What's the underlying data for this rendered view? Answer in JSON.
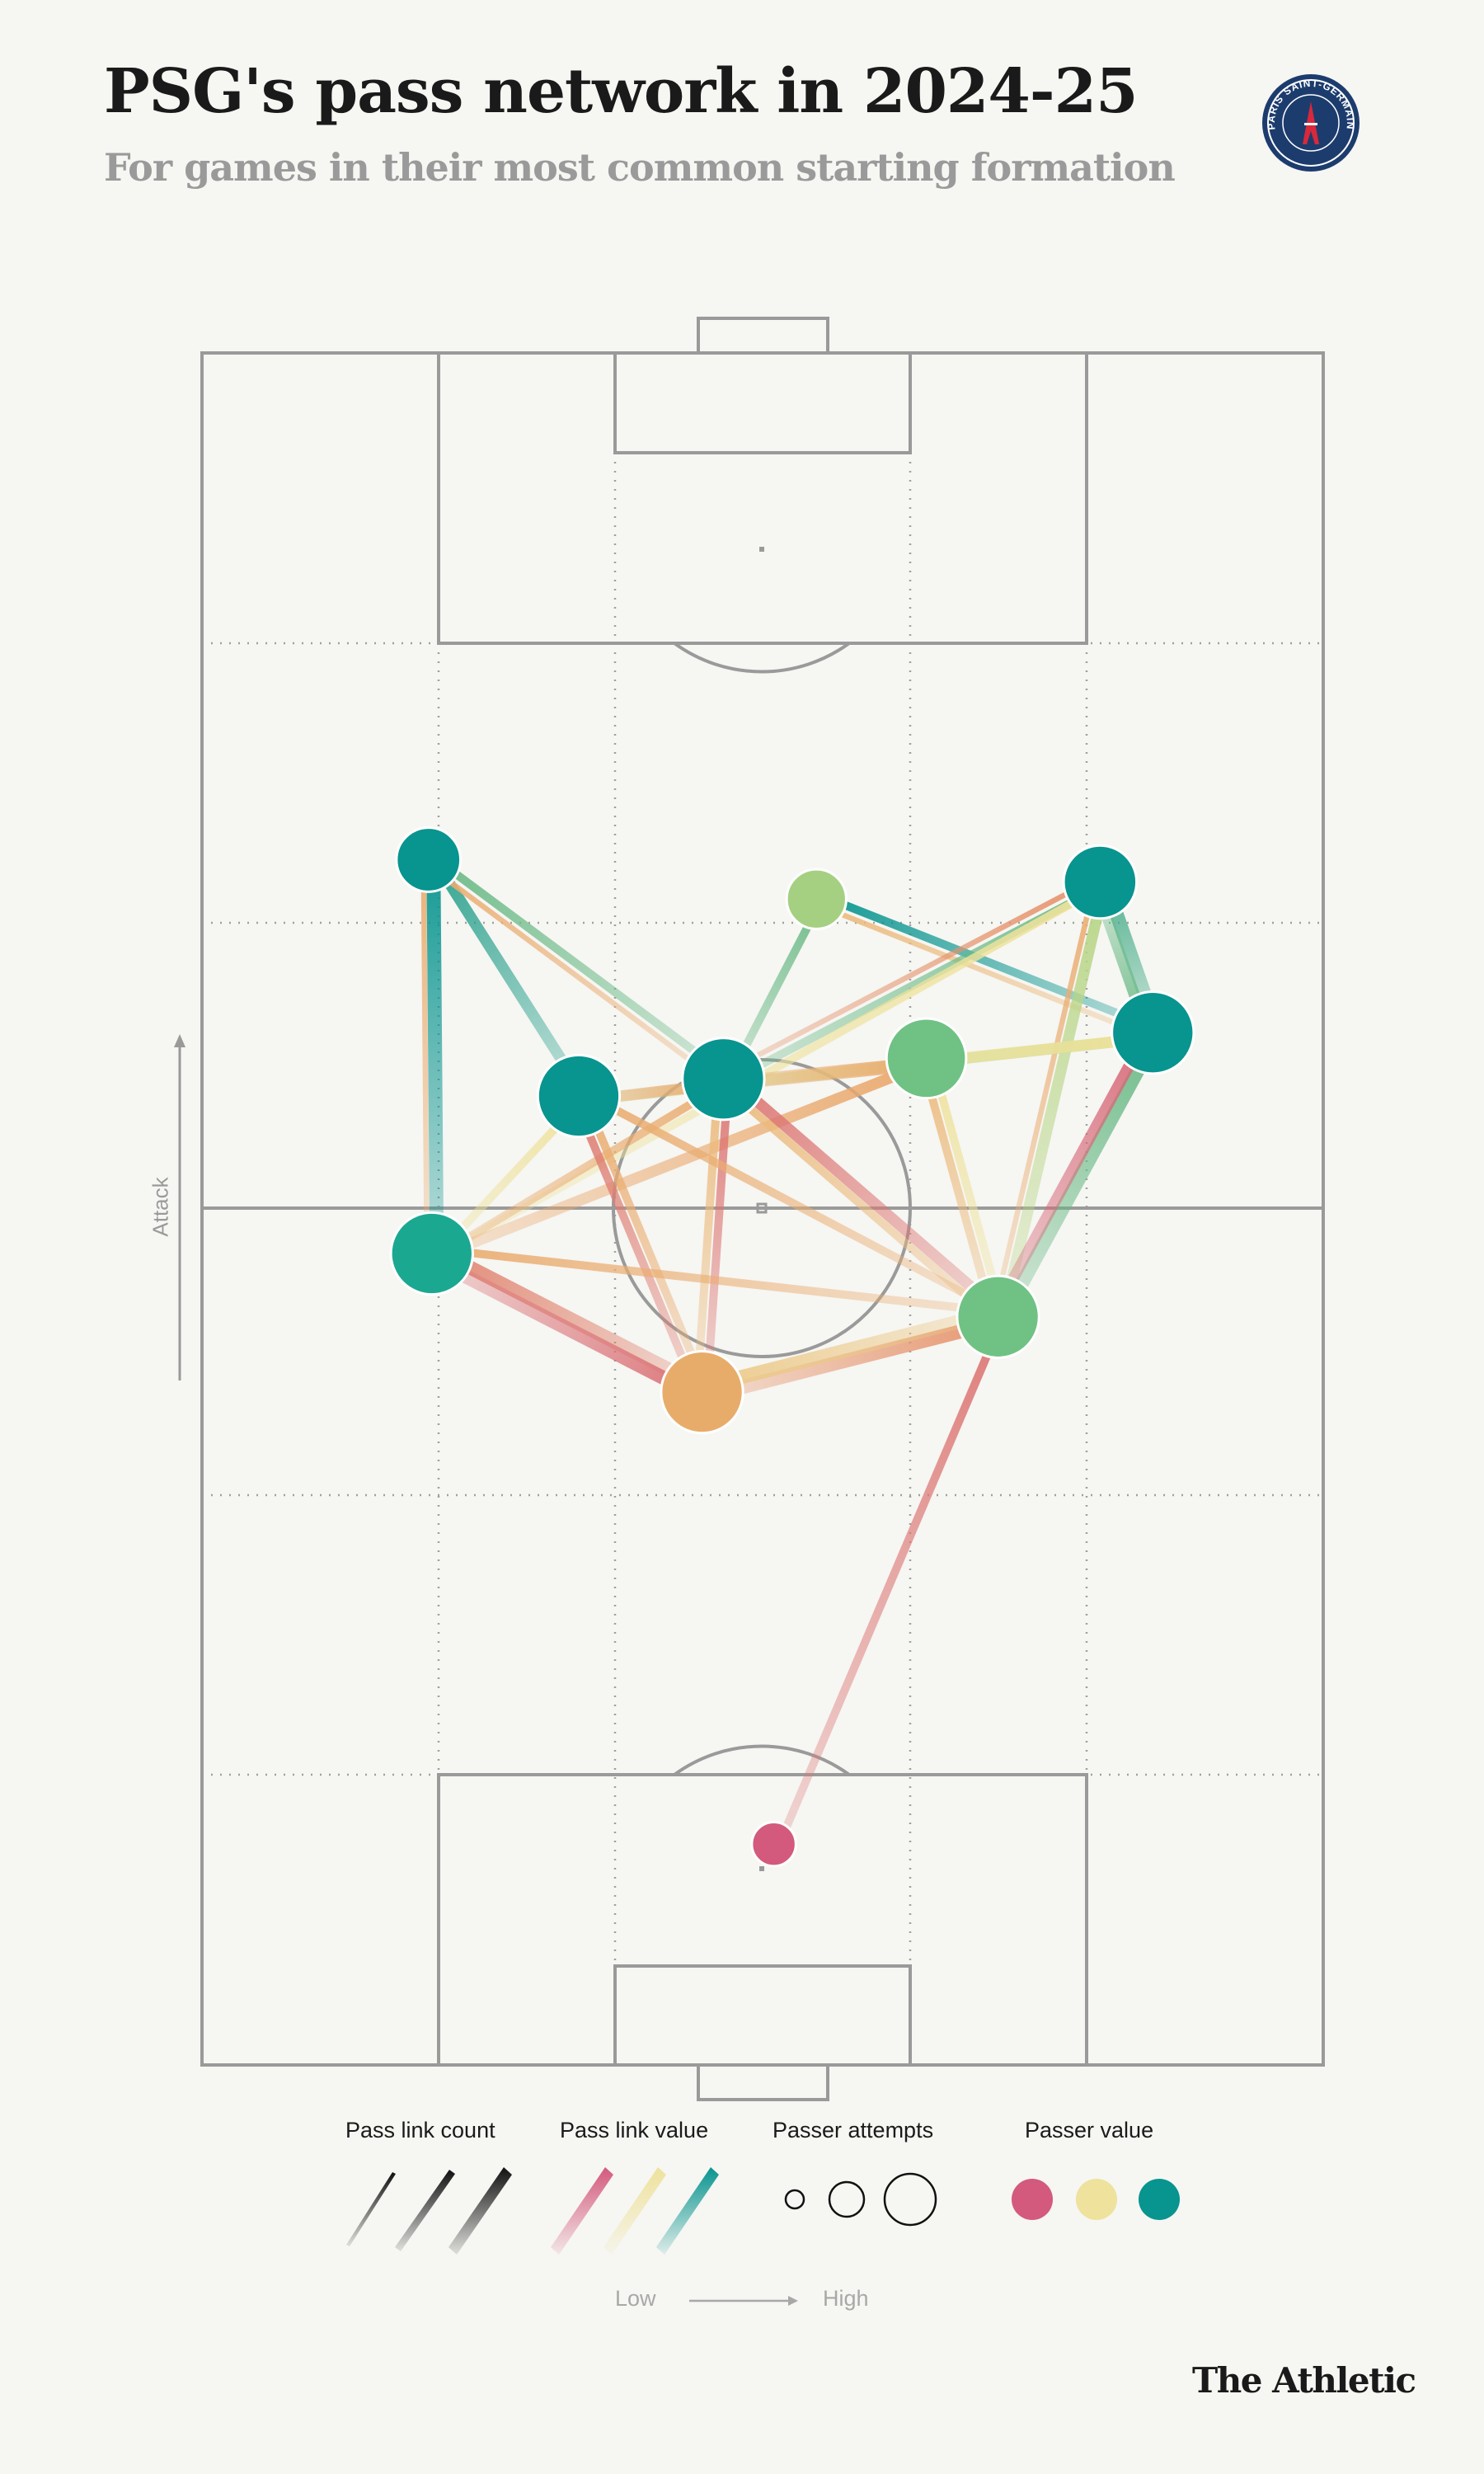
{
  "header": {
    "title": "PSG's pass network in 2024-25",
    "subtitle": "For games in their most common starting formation",
    "crest_text": "PARIS SAINT-GERMAIN"
  },
  "attack_label": "Attack",
  "legend": {
    "count_title": "Pass link count",
    "value_title": "Pass link value",
    "attempts_title": "Passer attempts",
    "passer_value_title": "Passer value",
    "low": "Low",
    "high": "High",
    "value_colors": [
      "#d35a7c",
      "#eee29c",
      "#08948f"
    ]
  },
  "brand": "The Athletic",
  "colors": {
    "background": "#f6f6f3",
    "pitch_lines": "#9a9a9a",
    "colormap": [
      "#d35a7c",
      "#e9a066",
      "#eee29c",
      "#a9d27f",
      "#08948f"
    ]
  },
  "chart_data": {
    "type": "network",
    "pitch": {
      "x_range": [
        0,
        100
      ],
      "y_range": [
        0,
        100
      ],
      "attack_direction": "up"
    },
    "nodes": [
      {
        "id": 1,
        "x": 20.2,
        "y": 70.4,
        "attempts": 0.55,
        "color": "#08948f"
      },
      {
        "id": 2,
        "x": 54.8,
        "y": 68.1,
        "attempts": 0.45,
        "color": "#a6d081"
      },
      {
        "id": 3,
        "x": 80.1,
        "y": 69.1,
        "attempts": 0.75,
        "color": "#08948f"
      },
      {
        "id": 4,
        "x": 84.8,
        "y": 60.3,
        "attempts": 0.95,
        "color": "#08948f"
      },
      {
        "id": 5,
        "x": 64.6,
        "y": 58.8,
        "attempts": 0.9,
        "color": "#6fc283"
      },
      {
        "id": 6,
        "x": 46.5,
        "y": 57.6,
        "attempts": 0.95,
        "color": "#08948f"
      },
      {
        "id": 7,
        "x": 33.6,
        "y": 56.6,
        "attempts": 0.95,
        "color": "#08948f"
      },
      {
        "id": 8,
        "x": 20.5,
        "y": 47.4,
        "attempts": 0.95,
        "color": "#1ba891"
      },
      {
        "id": 9,
        "x": 71.0,
        "y": 43.7,
        "attempts": 0.95,
        "color": "#6fc283"
      },
      {
        "id": 10,
        "x": 44.6,
        "y": 39.3,
        "attempts": 0.95,
        "color": "#e8ac6a"
      },
      {
        "id": 11,
        "x": 51.0,
        "y": 12.9,
        "attempts": 0.1,
        "color": "#d35a7c"
      }
    ],
    "edges": [
      {
        "from": 1,
        "to": 8,
        "count": 4,
        "value": 1.0
      },
      {
        "from": 1,
        "to": 7,
        "count": 3,
        "value": 0.95
      },
      {
        "from": 1,
        "to": 6,
        "count": 2,
        "value": 0.85
      },
      {
        "from": 1,
        "to": 6,
        "count": 1,
        "value": 0.3
      },
      {
        "from": 1,
        "to": 8,
        "count": 1,
        "value": 0.3
      },
      {
        "from": 2,
        "to": 6,
        "count": 2,
        "value": 0.85
      },
      {
        "from": 2,
        "to": 4,
        "count": 2,
        "value": 1.0
      },
      {
        "from": 2,
        "to": 4,
        "count": 1,
        "value": 0.35
      },
      {
        "from": 3,
        "to": 6,
        "count": 2,
        "value": 0.85
      },
      {
        "from": 3,
        "to": 4,
        "count": 4,
        "value": 0.9
      },
      {
        "from": 4,
        "to": 3,
        "count": 3,
        "value": 0.85
      },
      {
        "from": 3,
        "to": 9,
        "count": 3,
        "value": 0.7
      },
      {
        "from": 3,
        "to": 8,
        "count": 2,
        "value": 0.5
      },
      {
        "from": 3,
        "to": 6,
        "count": 1,
        "value": 0.2
      },
      {
        "from": 3,
        "to": 9,
        "count": 1,
        "value": 0.3
      },
      {
        "from": 4,
        "to": 9,
        "count": 4,
        "value": 0.85
      },
      {
        "from": 4,
        "to": 9,
        "count": 3,
        "value": 0.05
      },
      {
        "from": 4,
        "to": 7,
        "count": 3,
        "value": 0.65
      },
      {
        "from": 4,
        "to": 6,
        "count": 3,
        "value": 0.5
      },
      {
        "from": 5,
        "to": 6,
        "count": 4,
        "value": 0.28
      },
      {
        "from": 5,
        "to": 8,
        "count": 3,
        "value": 0.28
      },
      {
        "from": 5,
        "to": 9,
        "count": 2,
        "value": 0.5
      },
      {
        "from": 5,
        "to": 9,
        "count": 2,
        "value": 0.35
      },
      {
        "from": 6,
        "to": 9,
        "count": 3,
        "value": 0.1
      },
      {
        "from": 6,
        "to": 10,
        "count": 2,
        "value": 0.1
      },
      {
        "from": 6,
        "to": 10,
        "count": 2,
        "value": 0.35
      },
      {
        "from": 6,
        "to": 9,
        "count": 2,
        "value": 0.35
      },
      {
        "from": 6,
        "to": 7,
        "count": 3,
        "value": 0.28
      },
      {
        "from": 6,
        "to": 8,
        "count": 2,
        "value": 0.3
      },
      {
        "from": 7,
        "to": 8,
        "count": 2,
        "value": 0.5
      },
      {
        "from": 7,
        "to": 10,
        "count": 2,
        "value": 0.3
      },
      {
        "from": 7,
        "to": 9,
        "count": 2,
        "value": 0.3
      },
      {
        "from": 7,
        "to": 10,
        "count": 2,
        "value": 0.12
      },
      {
        "from": 8,
        "to": 10,
        "count": 4,
        "value": 0.15
      },
      {
        "from": 10,
        "to": 8,
        "count": 4,
        "value": 0.08
      },
      {
        "from": 8,
        "to": 9,
        "count": 2,
        "value": 0.3
      },
      {
        "from": 9,
        "to": 10,
        "count": 4,
        "value": 0.2
      },
      {
        "from": 10,
        "to": 9,
        "count": 4,
        "value": 0.4
      },
      {
        "from": 9,
        "to": 11,
        "count": 2,
        "value": 0.1
      }
    ]
  }
}
